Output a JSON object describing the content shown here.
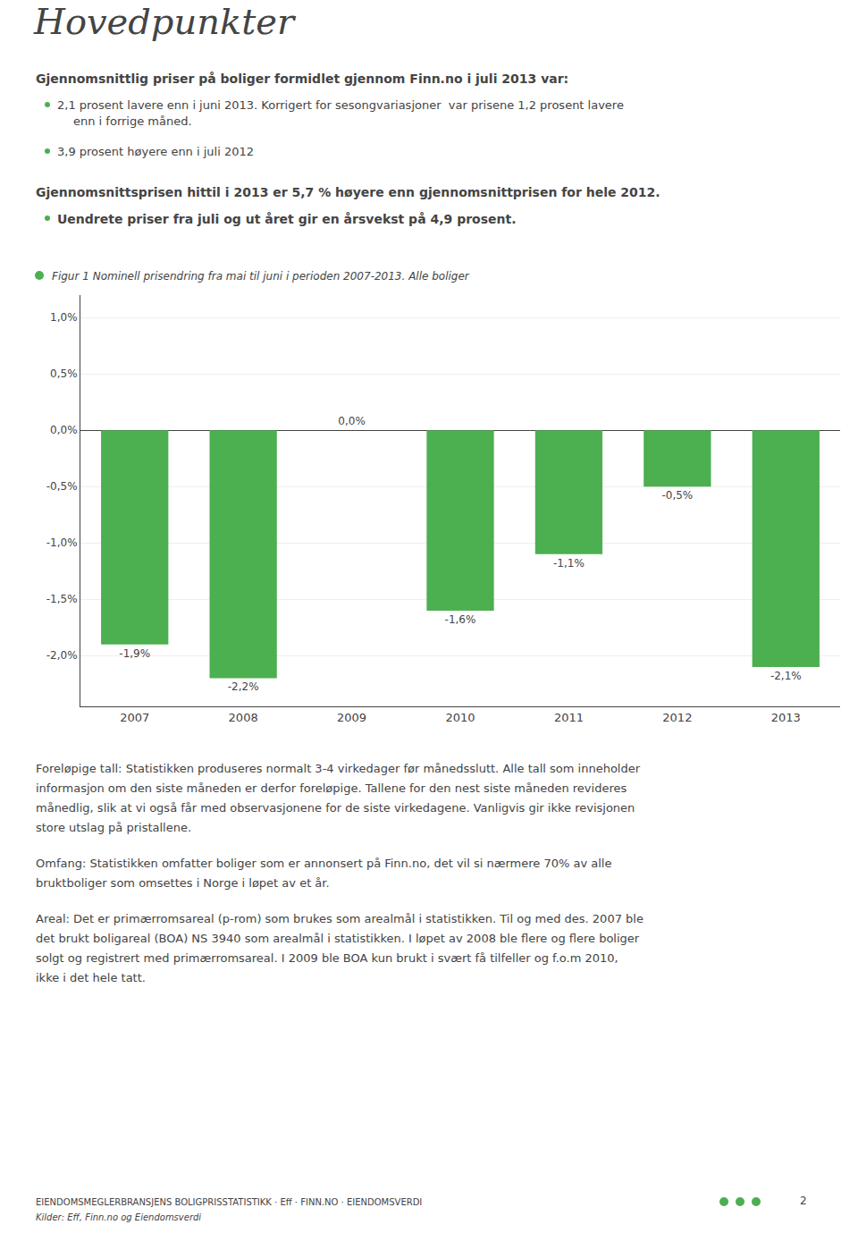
{
  "chart_data": {
    "type": "bar",
    "title": "Hovedpunkter",
    "subtitle": "Figur 1 Nominell prisendring fra mai til juni i perioden 2007-2013. Alle boliger",
    "annotations": [
      "Gjennomsnittlig priser på boliger formidlet gjennom Finn.no i juli 2013 var:",
      "2,1 prosent lavere enn i juni 2013. Korrigert for sesongvariasjoner  var prisene 1,2 prosent lavere",
      "enn i forrige måned.",
      "3,9 prosent høyere enn i juli 2012",
      "Gjennomsnittsprisen hittil i 2013 er 5,7 % høyere enn gjennomsnittprisen for hele 2012.",
      "Uendrete priser fra juli og ut året gir en årsvekst på 4,9 prosent.",
      "Foreløpige tall: Statistikken produseres normalt 3-4 virkedager før månedsslutt. Alle tall som inneholder",
      "informasjon om den siste måneden er derfor foreløpige. Tallene for den nest siste måneden revideres",
      "månedlig, slik at vi også får med observasjonene for de siste virkedagene. Vanligvis gir ikke revisjonen",
      "store utslag på pristallene.",
      "Omfang: Statistikken omfatter boliger som er annonsert på Finn.no, det vil si nærmere 70% av alle",
      "bruktboliger som omsettes i Norge i løpet av et år.",
      "Areal: Det er primærromsareal (p-rom) som brukes som arealmål i statistikken. Til og med des. 2007 ble",
      "det brukt boligareal (BOA) NS 3940 som arealmål i statistikken. I løpet av 2008 ble flere og flere boliger",
      "solgt og registrert med primærromsareal. I 2009 ble BOA kun brukt i svært få tilfeller og f.o.m 2010,",
      "ikke i det hele tatt.",
      "EIENDOMSMEGLERBRANSJENS BOLIGPRISSTATISTIKK · Eff · FINN.NO · EIENDOMSVERDI",
      "Kilder: Eff, Finn.no og Eiendomsverdi",
      "2"
    ],
    "categories": [
      "2007",
      "2008",
      "2009",
      "2010",
      "2011",
      "2012",
      "2013"
    ],
    "values": [
      -1.9,
      -2.2,
      0.0,
      -1.6,
      -1.1,
      -0.5,
      -2.1
    ],
    "value_labels": [
      "-1,9%",
      "-2,2%",
      "0,0%",
      "-1,6%",
      "-1,1%",
      "-0,5%",
      "-2,1%"
    ],
    "color": "#4CAF50",
    "ylim": [
      -2.45,
      1.2
    ],
    "yticks": [
      {
        "value": 1.0,
        "label": "1,0%"
      },
      {
        "value": 0.5,
        "label": "0,5%"
      },
      {
        "value": 0.0,
        "label": "0,0%"
      },
      {
        "value": -0.5,
        "label": "-0,5%"
      },
      {
        "value": -1.0,
        "label": "-1,0%"
      },
      {
        "value": -1.5,
        "label": "-1,5%"
      },
      {
        "value": -2.0,
        "label": "-2,0%"
      }
    ],
    "grid": true,
    "data_labels": true
  }
}
